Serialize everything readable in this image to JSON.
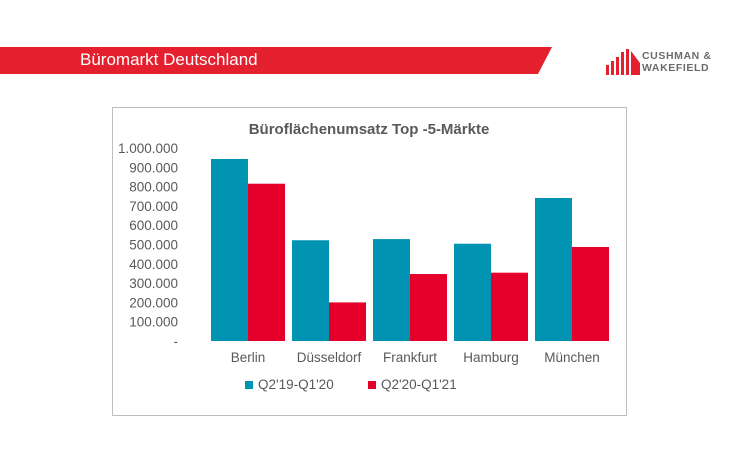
{
  "header": {
    "title": "Büromarkt Deutschland",
    "logo_text": "CUSHMAN & WAKEFIELD"
  },
  "colors": {
    "brand": "#e4202e",
    "series1": "#0093b2",
    "series2": "#e4002b"
  },
  "chart_data": {
    "type": "bar",
    "title": "Büroflächenumsatz Top  -5-Märkte",
    "categories": [
      "Berlin",
      "Düsseldorf",
      "Frankfurt",
      "Hamburg",
      "München"
    ],
    "series": [
      {
        "name": "Q2'19-Q1'20",
        "values": [
          943000,
          522000,
          528000,
          504000,
          741000
        ]
      },
      {
        "name": "Q2'20-Q1'21",
        "values": [
          815000,
          200000,
          347000,
          354000,
          487000
        ]
      }
    ],
    "ylim": [
      0,
      1000000
    ],
    "yticks": [
      "-",
      "100.000",
      "200.000",
      "300.000",
      "400.000",
      "500.000",
      "600.000",
      "700.000",
      "800.000",
      "900.000",
      "1.000.000"
    ],
    "grid": false,
    "legend": "bottom"
  }
}
